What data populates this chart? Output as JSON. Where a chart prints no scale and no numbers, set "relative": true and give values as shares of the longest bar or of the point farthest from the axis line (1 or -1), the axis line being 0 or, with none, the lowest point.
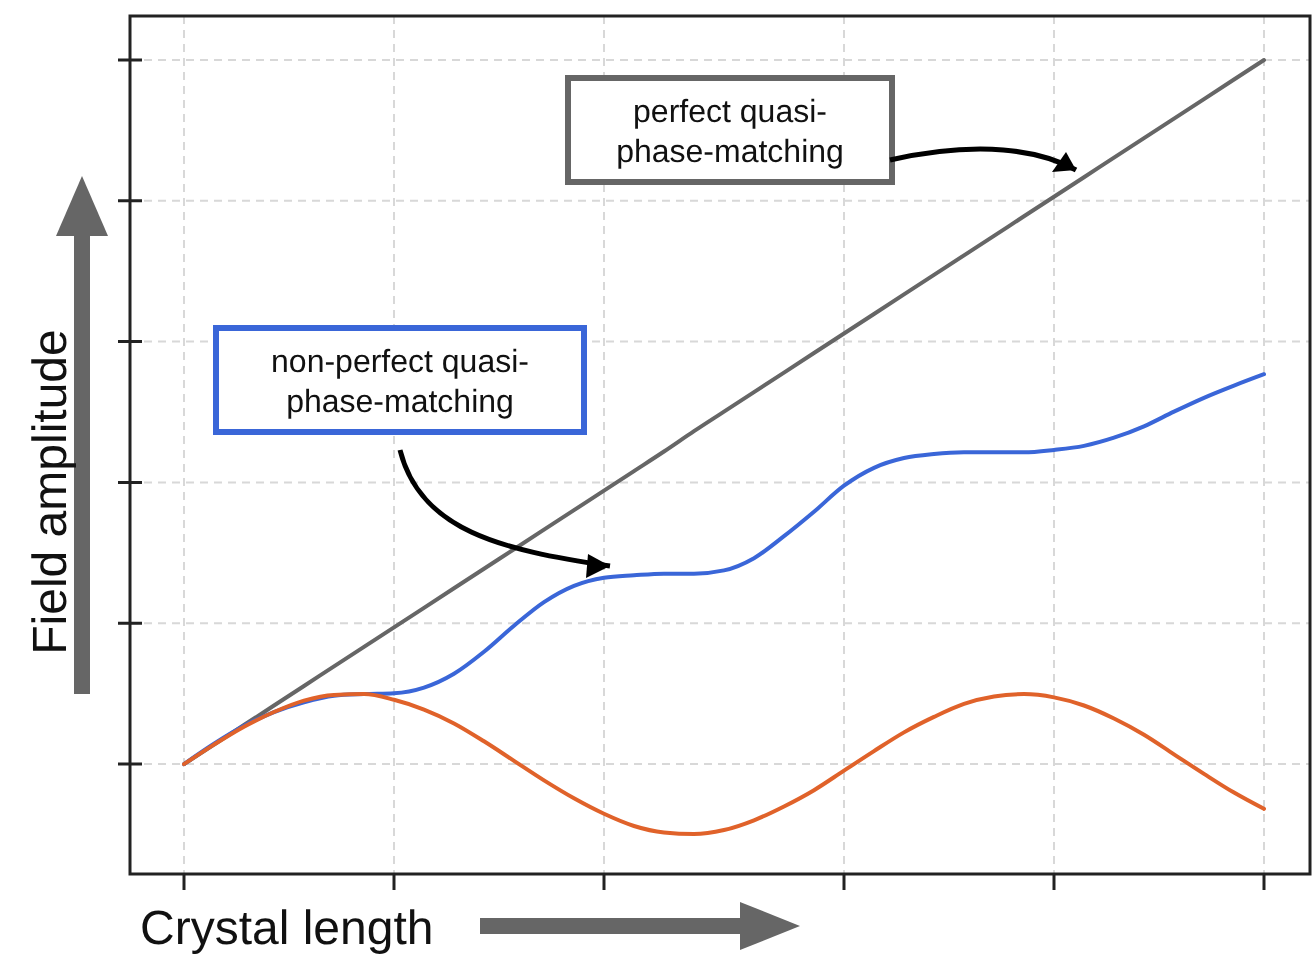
{
  "chart_data": {
    "type": "line",
    "relative": true,
    "xlabel": "Crystal length",
    "ylabel": "Field amplitude",
    "grid": true,
    "line_style": "solid",
    "categories": [
      null,
      null,
      null,
      null,
      null,
      null,
      null,
      null,
      null,
      null,
      null,
      null,
      null,
      null,
      null,
      null,
      null,
      null,
      null,
      null,
      null,
      null,
      null,
      null,
      null,
      null,
      null,
      null,
      null,
      null,
      null,
      null,
      null,
      null,
      null,
      null,
      null
    ],
    "series": [
      {
        "color": "#666666",
        "values": [
          0.135,
          0.159,
          0.183,
          0.207,
          0.231,
          0.255,
          0.279,
          0.303,
          0.327,
          0.351,
          0.375,
          0.399,
          0.423,
          0.447,
          0.471,
          0.495,
          0.519,
          0.544,
          0.568,
          0.592,
          0.616,
          0.64,
          0.664,
          0.688,
          0.712,
          0.736,
          0.76,
          0.784,
          0.808,
          0.832,
          0.856,
          0.88,
          0.904,
          0.928,
          0.952,
          0.976,
          1
        ]
      },
      {
        "color": "#3a66d8",
        "values": [
          0.135,
          0.16,
          0.182,
          0.199,
          0.211,
          0.219,
          0.221,
          0.222,
          0.229,
          0.246,
          0.273,
          0.305,
          0.334,
          0.354,
          0.364,
          0.367,
          0.369,
          0.369,
          0.373,
          0.388,
          0.415,
          0.445,
          0.477,
          0.499,
          0.511,
          0.516,
          0.518,
          0.518,
          0.518,
          0.521,
          0.526,
          0.536,
          0.55,
          0.568,
          0.585,
          0.6,
          0.614
        ]
      },
      {
        "color": "#e0622a",
        "values": [
          0.135,
          0.159,
          0.181,
          0.199,
          0.213,
          0.22,
          0.221,
          0.214,
          0.202,
          0.185,
          0.163,
          0.139,
          0.115,
          0.093,
          0.074,
          0.059,
          0.051,
          0.049,
          0.054,
          0.066,
          0.083,
          0.103,
          0.127,
          0.151,
          0.174,
          0.193,
          0.209,
          0.218,
          0.221,
          0.217,
          0.207,
          0.191,
          0.171,
          0.147,
          0.123,
          0.1,
          0.08
        ]
      }
    ],
    "annotations": [
      "perfect quasi-\nphase-matching",
      "non-perfect quasi-\nphase-matching"
    ]
  }
}
